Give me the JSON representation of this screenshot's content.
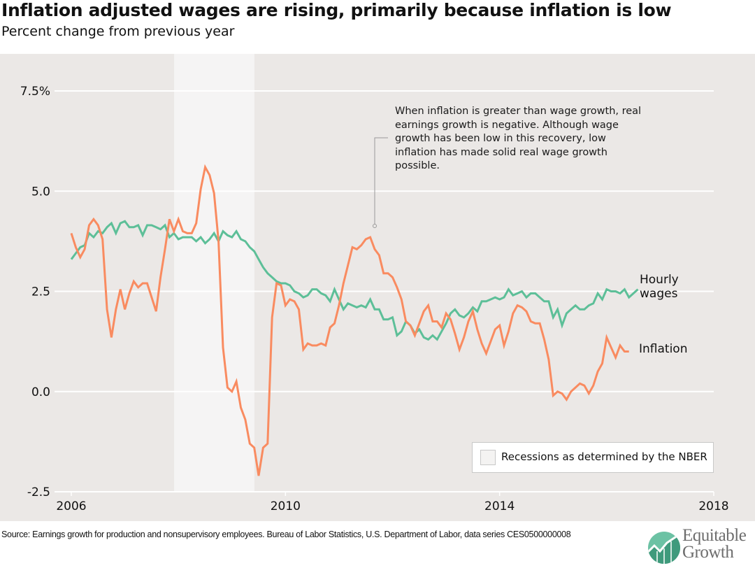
{
  "header": {
    "title": "Inflation adjusted wages are rising, primarily because inflation is low",
    "subtitle": "Percent change from previous year"
  },
  "annotation": {
    "text": "When inflation is greater than wage growth, real earnings growth is negative. Although wage growth has been low in this recovery, low inflation has made solid real wage growth possible."
  },
  "legend": {
    "recession_label": "Recessions as determined by the NBER"
  },
  "footer": {
    "source": "Source: Earnings growth for production and nonsupervisory employees. Bureau of Labor Statistics, U.S. Department of Labor, data series CES0500000008",
    "logo_line1": "Equitable",
    "logo_line2": "Growth"
  },
  "colors": {
    "wages": "#5dbf98",
    "inflation": "#f98b60",
    "background": "#ebe8e6",
    "recession": "#f5f4f4",
    "gridline": "#ffffff"
  },
  "chart_data": {
    "type": "line",
    "title": "Inflation adjusted wages are rising, primarily because inflation is low",
    "subtitle": "Percent change from previous year",
    "xlabel": "",
    "ylabel": "",
    "xlim": [
      2006,
      2018
    ],
    "ylim": [
      -2.5,
      7.5
    ],
    "xticks": [
      2006,
      2010,
      2014,
      2018
    ],
    "xtick_labels": [
      "2006",
      "2010",
      "2014",
      "2018"
    ],
    "yticks": [
      -2.5,
      0.0,
      2.5,
      5.0,
      7.5
    ],
    "ytick_labels": [
      "-2.5",
      "0.0",
      "2.5",
      "5.0",
      "7.5%"
    ],
    "grid": "horizontal",
    "recessions": [
      {
        "start": 2007.92,
        "end": 2009.42,
        "label": "Recessions as determined by the NBER"
      }
    ],
    "x_start": 2006.0,
    "x_step_months": 1,
    "series": [
      {
        "name": "Hourly wages",
        "label_lines": [
          "Hourly",
          "wages"
        ],
        "values": [
          3.3,
          3.45,
          3.6,
          3.65,
          3.95,
          3.85,
          4.0,
          3.95,
          4.1,
          4.2,
          3.95,
          4.2,
          4.25,
          4.1,
          4.1,
          4.15,
          3.9,
          4.15,
          4.15,
          4.1,
          4.05,
          4.15,
          3.85,
          3.95,
          3.8,
          3.85,
          3.85,
          3.85,
          3.75,
          3.85,
          3.7,
          3.8,
          3.95,
          3.75,
          4.0,
          3.9,
          3.85,
          4.0,
          3.8,
          3.75,
          3.6,
          3.5,
          3.3,
          3.1,
          2.95,
          2.85,
          2.75,
          2.7,
          2.7,
          2.65,
          2.5,
          2.45,
          2.35,
          2.4,
          2.55,
          2.55,
          2.45,
          2.4,
          2.25,
          2.55,
          2.3,
          2.05,
          2.2,
          2.15,
          2.1,
          2.15,
          2.1,
          2.3,
          2.05,
          2.05,
          1.8,
          1.8,
          1.85,
          1.4,
          1.5,
          1.75,
          1.65,
          1.45,
          1.55,
          1.35,
          1.3,
          1.4,
          1.3,
          1.5,
          1.7,
          1.95,
          2.05,
          1.9,
          1.85,
          1.95,
          2.1,
          2.0,
          2.25,
          2.25,
          2.3,
          2.35,
          2.3,
          2.35,
          2.55,
          2.4,
          2.45,
          2.5,
          2.35,
          2.45,
          2.45,
          2.35,
          2.25,
          2.25,
          1.85,
          2.05,
          1.65,
          1.95,
          2.05,
          2.15,
          2.05,
          2.05,
          2.15,
          2.2,
          2.45,
          2.3,
          2.55,
          2.5,
          2.5,
          2.45,
          2.55,
          2.35,
          2.45,
          2.55
        ]
      },
      {
        "name": "Inflation",
        "label_lines": [
          "Inflation"
        ],
        "values": [
          3.95,
          3.6,
          3.35,
          3.55,
          4.15,
          4.3,
          4.15,
          3.8,
          2.05,
          1.35,
          2.05,
          2.55,
          2.05,
          2.45,
          2.75,
          2.6,
          2.7,
          2.7,
          2.35,
          2.0,
          2.85,
          3.55,
          4.3,
          4.0,
          4.3,
          4.0,
          3.95,
          3.95,
          4.2,
          5.05,
          5.6,
          5.4,
          4.95,
          3.75,
          1.1,
          0.1,
          0.0,
          0.25,
          -0.4,
          -0.7,
          -1.3,
          -1.4,
          -2.1,
          -1.4,
          -1.3,
          1.85,
          2.7,
          2.65,
          2.15,
          2.3,
          2.25,
          2.05,
          1.05,
          1.2,
          1.15,
          1.15,
          1.2,
          1.15,
          1.6,
          1.7,
          2.15,
          2.7,
          3.15,
          3.6,
          3.55,
          3.65,
          3.8,
          3.85,
          3.55,
          3.4,
          2.95,
          2.95,
          2.85,
          2.6,
          2.3,
          1.75,
          1.65,
          1.4,
          1.7,
          2.0,
          2.15,
          1.75,
          1.75,
          1.6,
          1.95,
          1.8,
          1.45,
          1.05,
          1.35,
          1.75,
          2.0,
          1.55,
          1.2,
          0.95,
          1.25,
          1.55,
          1.65,
          1.15,
          1.5,
          1.95,
          2.15,
          2.1,
          2.0,
          1.75,
          1.7,
          1.7,
          1.3,
          0.8,
          -0.1,
          0.0,
          -0.05,
          -0.2,
          0.0,
          0.1,
          0.2,
          0.15,
          -0.05,
          0.15,
          0.5,
          0.7,
          1.35,
          1.1,
          0.85,
          1.15,
          1.0,
          1.0
        ]
      }
    ],
    "annotations": [
      "When inflation is greater than wage growth, real earnings growth is negative. Although wage growth has been low in this recovery, low inflation has made solid real wage growth possible."
    ],
    "legend": "bottom-right"
  }
}
